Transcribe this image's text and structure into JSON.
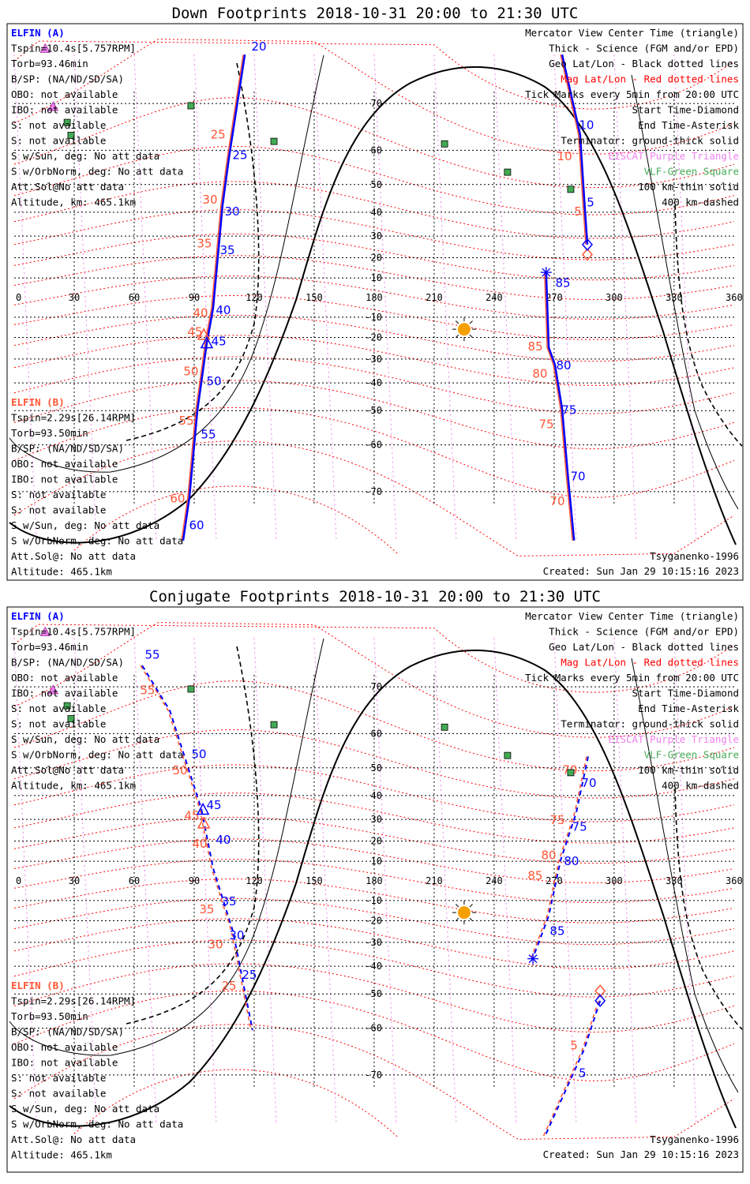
{
  "titles": [
    "Down Footprints 2018-10-31 20:00 to 21:30 UTC",
    "Conjugate Footprints 2018-10-31 20:00 to 21:30 UTC"
  ],
  "info_a": [
    "ELFIN (A)",
    "Tspin=10.4s[5.757RPM]",
    "Torb=93.46min",
    "B/SP: (NA/ND/SD/SA)",
    "OBO: not available",
    "IBO: not available",
    "S: not available",
    "S: not available",
    "S w/Sun, deg: No att data",
    "S w/OrbNorm, deg: No att data",
    "Att.Sol@No att data",
    "Altitude, km: 465.1km"
  ],
  "info_b": [
    "ELFIN (B)",
    "Tspin=2.29s[26.14RPM]",
    "Torb=93.50min",
    "B/SP: (NA/ND/SD/SA)",
    "OBO: not available",
    "IBO: not available",
    "S: not available",
    "S: not available",
    "S w/Sun, deg: No att data",
    "S w/OrbNorm, deg: No att data",
    "Att.Sol@: No att data",
    "Altitude: 465.1km"
  ],
  "legend": [
    "Mercator View Center Time (triangle)",
    "Thick - Science (FGM and/or EPD)",
    "Geo Lat/Lon - Black dotted lines",
    "Mag Lat/Lon - Red dotted lines",
    "Tick Marks every 5min from 20:00 UTC",
    "Start Time-Diamond",
    "End Time-Asterisk",
    "Terminator: ground-thick solid",
    "EISCAT-Purple Triangle",
    "VLF-Green Square",
    "100 km-thin solid",
    "400 km-dashed"
  ],
  "footer": {
    "model": "Tsyganenko-1996",
    "created": "Created: Sun Jan 29 10:15:16 2023"
  },
  "colors": {
    "elfin_a": "#0000ff",
    "elfin_b": "#ff5533",
    "mag_grid": "#ff0000",
    "eiscat": "#ee82ee",
    "vlf": "#44aa55",
    "legend_text": "#000000",
    "sun": "#f5a000"
  },
  "chart_data": [
    {
      "type": "map",
      "title": "Down Footprints 2018-10-31 20:00 to 21:30 UTC",
      "projection": "mercator",
      "xlim": [
        0,
        360
      ],
      "ylim": [
        -77,
        77
      ],
      "lon_ticks": [
        0,
        30,
        60,
        90,
        120,
        150,
        180,
        210,
        240,
        270,
        300,
        330,
        360
      ],
      "lat_ticks": [
        70,
        60,
        50,
        40,
        30,
        20,
        10,
        -10,
        -20,
        -30,
        -40,
        -50,
        -60,
        -70
      ],
      "tracks_geo": [
        [
          [
            286.6,
            26.2
          ],
          [
            285,
            45.6
          ],
          [
            283,
            63.8
          ],
          [
            274,
            77
          ]
        ],
        [
          [
            115.3,
            77
          ],
          [
            107.4,
            58
          ],
          [
            104.2,
            42.7
          ],
          [
            99.5,
            -5.2
          ],
          [
            96.3,
            -22.8
          ],
          [
            91.6,
            -50
          ],
          [
            87.6,
            -71
          ],
          [
            84.5,
            -77
          ]
        ],
        [
          [
            280,
            -77
          ],
          [
            277,
            -67.4
          ],
          [
            274,
            -49.4
          ],
          [
            270.4,
            -32.4
          ],
          [
            267.3,
            -24.8
          ],
          [
            266,
            12.8
          ]
        ]
      ],
      "track_style": "solid",
      "ticks_a": [
        [
          "20",
          122.4,
          78
        ],
        [
          "25",
          112.9,
          59
        ],
        [
          "30",
          109,
          40.6
        ],
        [
          "35",
          106.6,
          24
        ],
        [
          "40",
          104.6,
          -6
        ],
        [
          "45",
          102.3,
          -21.5
        ],
        [
          "50",
          99.9,
          -39
        ],
        [
          "55",
          97.1,
          -57
        ],
        [
          "60",
          91.2,
          -75
        ],
        [
          "70",
          281.9,
          -67
        ],
        [
          "75",
          277.5,
          -49.5
        ],
        [
          "80",
          274.8,
          -32.5
        ],
        [
          "85",
          274.4,
          3
        ],
        [
          "5",
          288.2,
          44
        ],
        [
          "10",
          286.2,
          64
        ]
      ],
      "ticks_b": [
        [
          "25",
          101.9,
          64
        ],
        [
          "30",
          97.9,
          45
        ],
        [
          "35",
          95.1,
          27
        ],
        [
          "40",
          93.2,
          -5
        ],
        [
          "45",
          90.4,
          -17
        ],
        [
          "50",
          88.4,
          -35
        ],
        [
          "55",
          86.1,
          -53
        ],
        [
          "60",
          81.7,
          -71
        ],
        [
          "70",
          271.6,
          -71.5
        ],
        [
          "75",
          266.1,
          -54
        ],
        [
          "80",
          262.9,
          -36
        ],
        [
          "85",
          260.6,
          -24
        ],
        [
          "10",
          275.2,
          59.5
        ],
        [
          "5",
          281.9,
          40.6
        ]
      ],
      "start_a": [
        286.6,
        26.2
      ],
      "start_b": [
        286.6,
        21.5
      ],
      "end": [
        266,
        12.8
      ],
      "center_a": [
        96.3,
        -23
      ],
      "center_b": [
        94.8,
        -19
      ],
      "sun": [
        225,
        -16
      ],
      "eiscat": [
        [
          15.5,
          77.6
        ],
        [
          19.5,
          69.3
        ]
      ],
      "vlf": [
        [
          88.4,
          69.6
        ],
        [
          26.5,
          66.4
        ],
        [
          28.4,
          63.6
        ],
        [
          129.9,
          62.2
        ],
        [
          215.2,
          61.6
        ],
        [
          246.7,
          53.9
        ],
        [
          278.3,
          48.4
        ]
      ]
    },
    {
      "type": "map",
      "title": "Conjugate Footprints 2018-10-31 20:00 to 21:30 UTC",
      "projection": "mercator",
      "xlim": [
        0,
        360
      ],
      "ylim": [
        -77,
        77
      ],
      "lon_ticks": [
        0,
        30,
        60,
        90,
        120,
        150,
        180,
        210,
        240,
        270,
        300,
        330,
        360
      ],
      "lat_ticks": [
        70,
        60,
        50,
        40,
        30,
        20,
        10,
        -10,
        -20,
        -30,
        -40,
        -50,
        -60,
        -70
      ],
      "tracks_geo": [
        [
          [
            64,
            73.4
          ],
          [
            77.8,
            65.4
          ],
          [
            93.6,
            34.5
          ],
          [
            99.5,
            6.4
          ],
          [
            109.4,
            -25
          ],
          [
            119.2,
            -60.5
          ]
        ],
        [
          [
            287,
            53.6
          ],
          [
            281,
            32.8
          ],
          [
            273.2,
            10.4
          ],
          [
            267.3,
            -17.6
          ],
          [
            259.4,
            -36.6
          ]
        ],
        [
          [
            293,
            -52.2
          ],
          [
            285,
            -65
          ],
          [
            265.3,
            -78.4
          ]
        ]
      ],
      "track_style": "dashed",
      "ticks_a": [
        [
          "55",
          69.1,
          75
        ],
        [
          "50",
          92.4,
          54.5
        ],
        [
          "45",
          99.9,
          36.5
        ],
        [
          "40",
          104.6,
          21
        ],
        [
          "35",
          107.4,
          -10
        ],
        [
          "30",
          111.3,
          -26.5
        ],
        [
          "25",
          117.6,
          -43
        ],
        [
          "70",
          287.4,
          45
        ],
        [
          "75",
          282.7,
          27
        ],
        [
          "80",
          278.7,
          10.5
        ],
        [
          "85",
          271.6,
          -24.5
        ],
        [
          "5",
          284.2,
          -69.5
        ]
      ],
      "ticks_b": [
        [
          "55",
          66.7,
          69.5
        ],
        [
          "50",
          82.9,
          50.5
        ],
        [
          "45",
          88.8,
          32
        ],
        [
          "40",
          92.8,
          19
        ],
        [
          "35",
          96.3,
          -14
        ],
        [
          "30",
          100.7,
          -30.5
        ],
        [
          "25",
          107.4,
          -47
        ],
        [
          "70",
          277.9,
          49.5
        ],
        [
          "75",
          271.6,
          30
        ],
        [
          "80",
          267.3,
          13.5
        ],
        [
          "85",
          262.9,
          3
        ],
        [
          "5",
          279.9,
          -64
        ]
      ],
      "start_a": [
        293,
        -52.2
      ],
      "start_b": [
        293,
        -49
      ],
      "end": [
        259.4,
        -37
      ],
      "center_a": [
        94.4,
        34
      ],
      "center_b": [
        94.8,
        28
      ],
      "sun": [
        225,
        -16
      ],
      "eiscat": [
        [
          15.5,
          77.6
        ],
        [
          19.5,
          69.3
        ]
      ],
      "vlf": [
        [
          88.4,
          69.6
        ],
        [
          26.5,
          66.4
        ],
        [
          28.4,
          63.6
        ],
        [
          129.9,
          62.2
        ],
        [
          215.2,
          61.6
        ],
        [
          246.7,
          53.9
        ],
        [
          278.3,
          48.4
        ]
      ]
    }
  ]
}
